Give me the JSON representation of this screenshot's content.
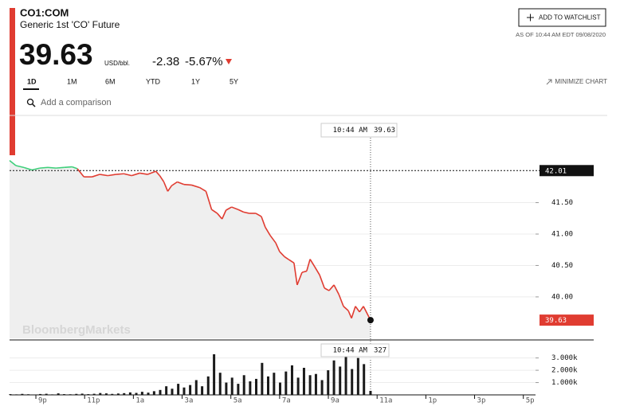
{
  "header": {
    "ticker": "CO1:COM",
    "name": "Generic 1st 'CO' Future",
    "unit": "USD/bbl.",
    "change": "-2.38",
    "change_pct": "-5.67%",
    "watchlist": "ADD TO WATCHLIST",
    "as_of": "AS OF 10:44 AM EDT 09/08/2020",
    "tabs": [
      "1D",
      "1M",
      "6M",
      "YTD",
      "1Y",
      "5Y"
    ],
    "minimize": "MINIMIZE CHART",
    "compare": "Add a comparison",
    "watermark": "BloombergMarkets"
  },
  "chart_data": [
    {
      "type": "line",
      "color": "#e03c31",
      "up_color": "#3ecf7a",
      "area_color": "#efefef",
      "reference": 42.01,
      "crosshair_label": "10:44 AM",
      "x": [
        19.92,
        20.18,
        20.51,
        20.84,
        21.16,
        21.49,
        21.82,
        22.15,
        22.48,
        22.7,
        22.97,
        23.3,
        23.62,
        23.95,
        24.28,
        24.61,
        24.93,
        25.26,
        25.59,
        25.92,
        26.08,
        26.25,
        26.41,
        26.57,
        26.8,
        27.07,
        27.39,
        27.72,
        27.98,
        28.21,
        28.44,
        28.64,
        28.8,
        29.03,
        29.3,
        29.52,
        29.75,
        30.02,
        30.25,
        30.41,
        30.61,
        30.84,
        31.0,
        31.2,
        31.39,
        31.59,
        31.72,
        31.92,
        32.11,
        32.25,
        32.44,
        32.64,
        32.84,
        33.03,
        33.23,
        33.43,
        33.62,
        33.82,
        33.95,
        34.11,
        34.28,
        34.44,
        34.73
      ],
      "values": [
        42.17,
        42.09,
        42.06,
        42.02,
        42.05,
        42.06,
        42.05,
        42.06,
        42.07,
        42.04,
        41.91,
        41.91,
        41.95,
        41.93,
        41.95,
        41.96,
        41.93,
        41.97,
        41.95,
        42.0,
        41.93,
        41.83,
        41.68,
        41.77,
        41.83,
        41.79,
        41.78,
        41.74,
        41.68,
        41.39,
        41.33,
        41.24,
        41.38,
        41.43,
        41.39,
        41.35,
        41.33,
        41.33,
        41.28,
        41.11,
        40.98,
        40.86,
        40.72,
        40.64,
        40.59,
        40.54,
        40.19,
        40.39,
        40.41,
        40.6,
        40.48,
        40.35,
        40.14,
        40.1,
        40.19,
        40.04,
        39.85,
        39.78,
        39.66,
        39.85,
        39.76,
        39.85,
        39.63
      ],
      "xlim": [
        19.92,
        41.5
      ],
      "ylim": [
        39.34,
        42.85
      ],
      "yticks": [
        {
          "value": 40,
          "label": "40.00"
        },
        {
          "value": 40.5,
          "label": "40.50"
        },
        {
          "value": 41,
          "label": "41.00"
        },
        {
          "value": 41.5,
          "label": "41.50"
        }
      ]
    },
    {
      "type": "bar",
      "color": "#1a1a1a",
      "crosshair_label": "10:44 AM",
      "x": [
        19.95,
        20.2,
        20.44,
        20.69,
        20.93,
        21.18,
        21.43,
        21.67,
        21.92,
        22.16,
        22.41,
        22.66,
        22.9,
        23.15,
        23.39,
        23.64,
        23.89,
        24.13,
        24.38,
        24.62,
        24.87,
        25.12,
        25.36,
        25.61,
        25.85,
        26.1,
        26.35,
        26.59,
        26.84,
        27.08,
        27.33,
        27.58,
        27.82,
        28.07,
        28.31,
        28.56,
        28.81,
        29.05,
        29.3,
        29.54,
        29.79,
        30.04,
        30.28,
        30.53,
        30.77,
        31.02,
        31.26,
        31.51,
        31.76,
        32.0,
        32.25,
        32.49,
        32.74,
        32.99,
        33.23,
        33.48,
        33.72,
        33.97,
        34.22,
        34.46,
        34.73
      ],
      "values": [
        60,
        40,
        80,
        50,
        30,
        70,
        90,
        40,
        120,
        60,
        50,
        80,
        100,
        60,
        90,
        150,
        120,
        80,
        110,
        140,
        200,
        160,
        250,
        180,
        300,
        400,
        700,
        500,
        900,
        600,
        800,
        1200,
        700,
        1500,
        3300,
        1800,
        1000,
        1400,
        900,
        1600,
        1100,
        1300,
        2600,
        1500,
        1800,
        1000,
        1900,
        2400,
        1400,
        2200,
        1600,
        1700,
        1200,
        2000,
        2800,
        2300,
        3300,
        2100,
        3000,
        2500,
        327
      ],
      "xlim": [
        19.92,
        41.5
      ],
      "ylim": [
        0,
        4400
      ],
      "yticks": [
        {
          "value": 1000,
          "label": "1.000k"
        },
        {
          "value": 2000,
          "label": "2.000k"
        },
        {
          "value": 3000,
          "label": "3.000k"
        }
      ],
      "xticks": [
        {
          "value": 21,
          "label": "9p"
        },
        {
          "value": 23,
          "label": "11p"
        },
        {
          "value": 25,
          "label": "1a"
        },
        {
          "value": 27,
          "label": "3a"
        },
        {
          "value": 29,
          "label": "5a"
        },
        {
          "value": 31,
          "label": "7a"
        },
        {
          "value": 33,
          "label": "9a"
        },
        {
          "value": 35,
          "label": "11a"
        },
        {
          "value": 37,
          "label": "1p"
        },
        {
          "value": 39,
          "label": "3p"
        },
        {
          "value": 41,
          "label": "5p"
        }
      ]
    }
  ]
}
